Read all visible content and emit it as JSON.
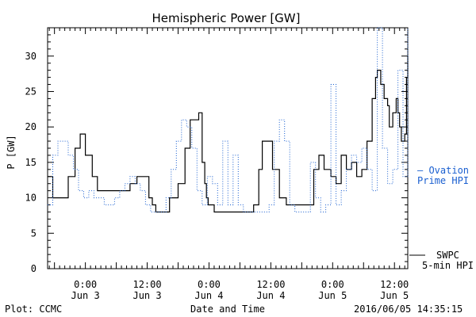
{
  "chart_data": {
    "type": "line",
    "title": "Hemispheric Power [GW]",
    "ylabel": "P [GW]",
    "xlabel": "Date and Time",
    "ylim": [
      0,
      34
    ],
    "yticks": [
      0,
      5,
      10,
      15,
      20,
      25,
      30
    ],
    "xlim": [
      "2016-06-02 16:40",
      "2016-06-05 14:35"
    ],
    "xticks": [
      {
        "t": "2016-06-03 00:00",
        "time": "0:00",
        "date": "Jun 3"
      },
      {
        "t": "2016-06-03 12:00",
        "time": "12:00",
        "date": "Jun 3"
      },
      {
        "t": "2016-06-04 00:00",
        "time": "0:00",
        "date": "Jun 4"
      },
      {
        "t": "2016-06-04 12:00",
        "time": "12:00",
        "date": "Jun 4"
      },
      {
        "t": "2016-06-05 00:00",
        "time": "0:00",
        "date": "Jun 5"
      },
      {
        "t": "2016-06-05 12:00",
        "time": "12:00",
        "date": "Jun 5"
      }
    ],
    "series": [
      {
        "name": "SWPC 5-min HPI",
        "color": "#000000",
        "style": "solid",
        "x": [
          "2016-06-02 16:40",
          "2016-06-02 17:40",
          "2016-06-02 19:00",
          "2016-06-02 20:40",
          "2016-06-02 22:00",
          "2016-06-02 23:00",
          "2016-06-03 00:00",
          "2016-06-03 01:20",
          "2016-06-03 02:20",
          "2016-06-03 04:00",
          "2016-06-03 06:00",
          "2016-06-03 07:20",
          "2016-06-03 08:40",
          "2016-06-03 10:00",
          "2016-06-03 11:00",
          "2016-06-03 11:40",
          "2016-06-03 12:20",
          "2016-06-03 13:00",
          "2016-06-03 13:40",
          "2016-06-03 15:00",
          "2016-06-03 16:20",
          "2016-06-03 18:00",
          "2016-06-03 19:20",
          "2016-06-03 20:20",
          "2016-06-03 21:20",
          "2016-06-03 22:00",
          "2016-06-03 22:40",
          "2016-06-03 23:10",
          "2016-06-03 23:30",
          "2016-06-03 23:50",
          "2016-06-04 00:20",
          "2016-06-04 01:00",
          "2016-06-04 02:20",
          "2016-06-04 03:40",
          "2016-06-04 05:00",
          "2016-06-04 06:20",
          "2016-06-04 07:40",
          "2016-06-04 08:40",
          "2016-06-04 09:40",
          "2016-06-04 10:20",
          "2016-06-04 11:20",
          "2016-06-04 12:20",
          "2016-06-04 13:40",
          "2016-06-04 15:00",
          "2016-06-04 16:00",
          "2016-06-04 17:00",
          "2016-06-04 18:00",
          "2016-06-04 19:00",
          "2016-06-04 20:20",
          "2016-06-04 21:20",
          "2016-06-04 22:20",
          "2016-06-04 23:40",
          "2016-06-05 00:40",
          "2016-06-05 01:40",
          "2016-06-05 02:40",
          "2016-06-05 03:40",
          "2016-06-05 04:40",
          "2016-06-05 05:40",
          "2016-06-05 06:40",
          "2016-06-05 07:40",
          "2016-06-05 08:20",
          "2016-06-05 08:40",
          "2016-06-05 09:20",
          "2016-06-05 10:00",
          "2016-06-05 10:40",
          "2016-06-05 11:00",
          "2016-06-05 11:40",
          "2016-06-05 12:20",
          "2016-06-05 12:40",
          "2016-06-05 13:00",
          "2016-06-05 13:20",
          "2016-06-05 13:40",
          "2016-06-05 14:00",
          "2016-06-05 14:20",
          "2016-06-05 14:35"
        ],
        "y": [
          13,
          10,
          10,
          13,
          17,
          19,
          16,
          13,
          11,
          11,
          11,
          11,
          12,
          13,
          13,
          13,
          10,
          9,
          8,
          8,
          10,
          12,
          17,
          21,
          21,
          22,
          15,
          12,
          10,
          9,
          9,
          8,
          8,
          8,
          8,
          8,
          8,
          9,
          14,
          18,
          18,
          14,
          10,
          9,
          9,
          9,
          9,
          9,
          14,
          16,
          14,
          13,
          12,
          16,
          14,
          15,
          13,
          14,
          18,
          24,
          27,
          28,
          26,
          24,
          23,
          20,
          22,
          24,
          22,
          20,
          18,
          18,
          19,
          27,
          30
        ]
      },
      {
        "name": "Ovation Prime HPI",
        "color": "#1a5fd0",
        "style": "dotted",
        "x": [
          "2016-06-02 16:40",
          "2016-06-02 17:40",
          "2016-06-02 18:40",
          "2016-06-02 19:40",
          "2016-06-02 20:40",
          "2016-06-02 21:40",
          "2016-06-02 22:40",
          "2016-06-02 23:40",
          "2016-06-03 00:40",
          "2016-06-03 01:40",
          "2016-06-03 02:40",
          "2016-06-03 03:40",
          "2016-06-03 04:40",
          "2016-06-03 05:40",
          "2016-06-03 06:40",
          "2016-06-03 07:40",
          "2016-06-03 08:40",
          "2016-06-03 09:40",
          "2016-06-03 10:40",
          "2016-06-03 11:40",
          "2016-06-03 12:40",
          "2016-06-03 13:40",
          "2016-06-03 14:40",
          "2016-06-03 15:40",
          "2016-06-03 16:40",
          "2016-06-03 17:40",
          "2016-06-03 18:40",
          "2016-06-03 19:40",
          "2016-06-03 20:40",
          "2016-06-03 21:40",
          "2016-06-03 22:40",
          "2016-06-03 23:40",
          "2016-06-04 00:40",
          "2016-06-04 01:40",
          "2016-06-04 02:40",
          "2016-06-04 03:40",
          "2016-06-04 04:40",
          "2016-06-04 05:40",
          "2016-06-04 06:40",
          "2016-06-04 07:40",
          "2016-06-04 08:40",
          "2016-06-04 09:40",
          "2016-06-04 10:40",
          "2016-06-04 11:40",
          "2016-06-04 12:40",
          "2016-06-04 13:40",
          "2016-06-04 14:40",
          "2016-06-04 15:40",
          "2016-06-04 16:40",
          "2016-06-04 17:40",
          "2016-06-04 18:40",
          "2016-06-04 19:40",
          "2016-06-04 20:40",
          "2016-06-04 21:40",
          "2016-06-04 22:40",
          "2016-06-04 23:40",
          "2016-06-05 00:40",
          "2016-06-05 01:40",
          "2016-06-05 02:40",
          "2016-06-05 03:40",
          "2016-06-05 04:40",
          "2016-06-05 05:40",
          "2016-06-05 06:40",
          "2016-06-05 07:40",
          "2016-06-05 08:40",
          "2016-06-05 09:40",
          "2016-06-05 10:40",
          "2016-06-05 11:40",
          "2016-06-05 12:40",
          "2016-06-05 13:40",
          "2016-06-05 14:35"
        ],
        "y": [
          9,
          16,
          18,
          18,
          16,
          14,
          11,
          10,
          11,
          10,
          10,
          9,
          9,
          10,
          11,
          12,
          13,
          12,
          11,
          9,
          8,
          8,
          8,
          10,
          14,
          18,
          21,
          20,
          17,
          11,
          9,
          13,
          12,
          9,
          18,
          9,
          16,
          9,
          8,
          8,
          8,
          8,
          8,
          9,
          18,
          21,
          18,
          9,
          8,
          8,
          8,
          15,
          10,
          8,
          9,
          26,
          9,
          11,
          14,
          16,
          15,
          17,
          14,
          11,
          34,
          17,
          12,
          14,
          28,
          13,
          34
        ]
      }
    ],
    "legend": [
      {
        "lines": [
          "– Ovation",
          "Prime HPI"
        ],
        "color": "#1a5fd0"
      },
      {
        "lines": [
          "SWPC",
          "5-min HPI"
        ],
        "color": "#000000"
      }
    ]
  },
  "footer": {
    "left": "Plot: CCMC",
    "center": "Date and Time",
    "right": "2016/06/05 14:35:15"
  }
}
